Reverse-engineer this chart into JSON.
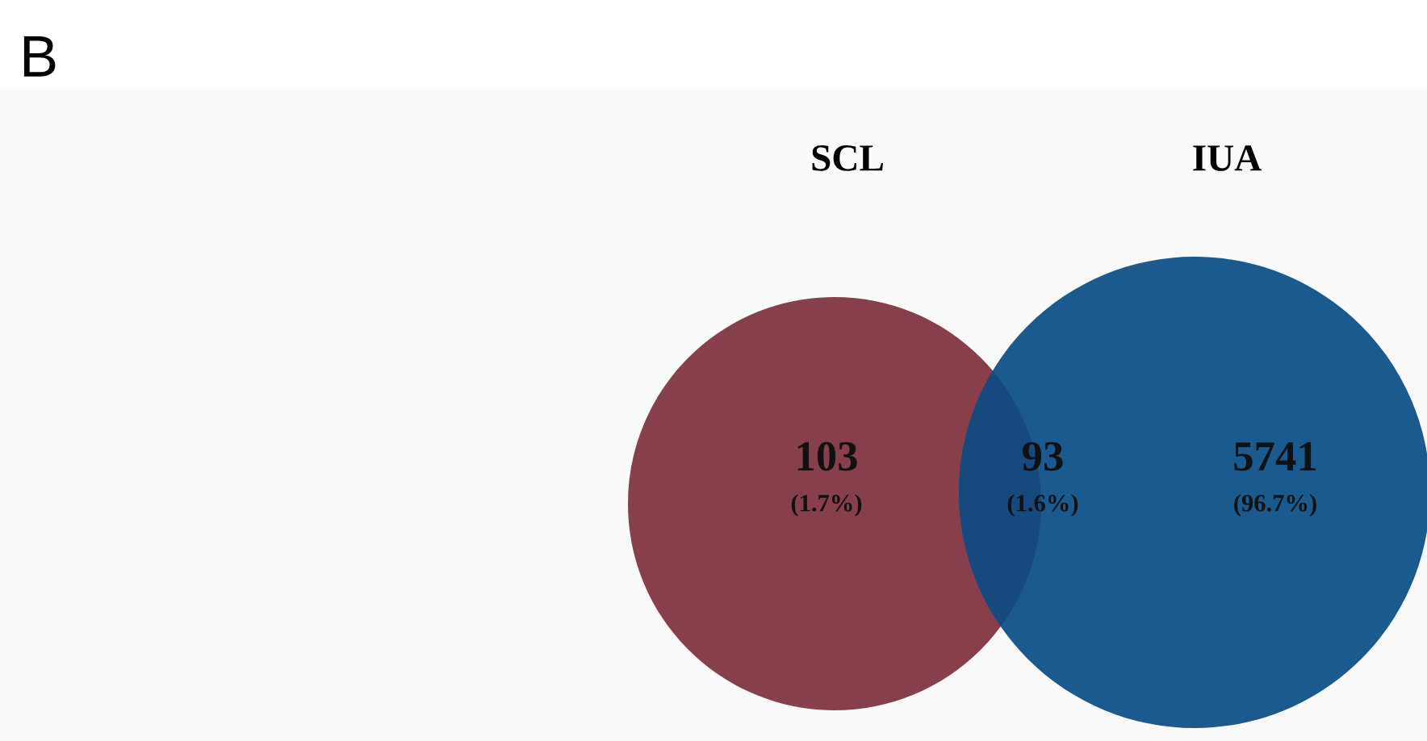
{
  "chart_data": {
    "type": "other",
    "title": "B",
    "colors": [
      "#87404b",
      "#164a7f",
      "#1a5a8f"
    ],
    "annotations": [
      "SCL",
      "IUA",
      "(1.7%)",
      "(1.6%)",
      "(96.7%)"
    ],
    "values": [
      103,
      93,
      5741
    ],
    "data_labels": true
  }
}
